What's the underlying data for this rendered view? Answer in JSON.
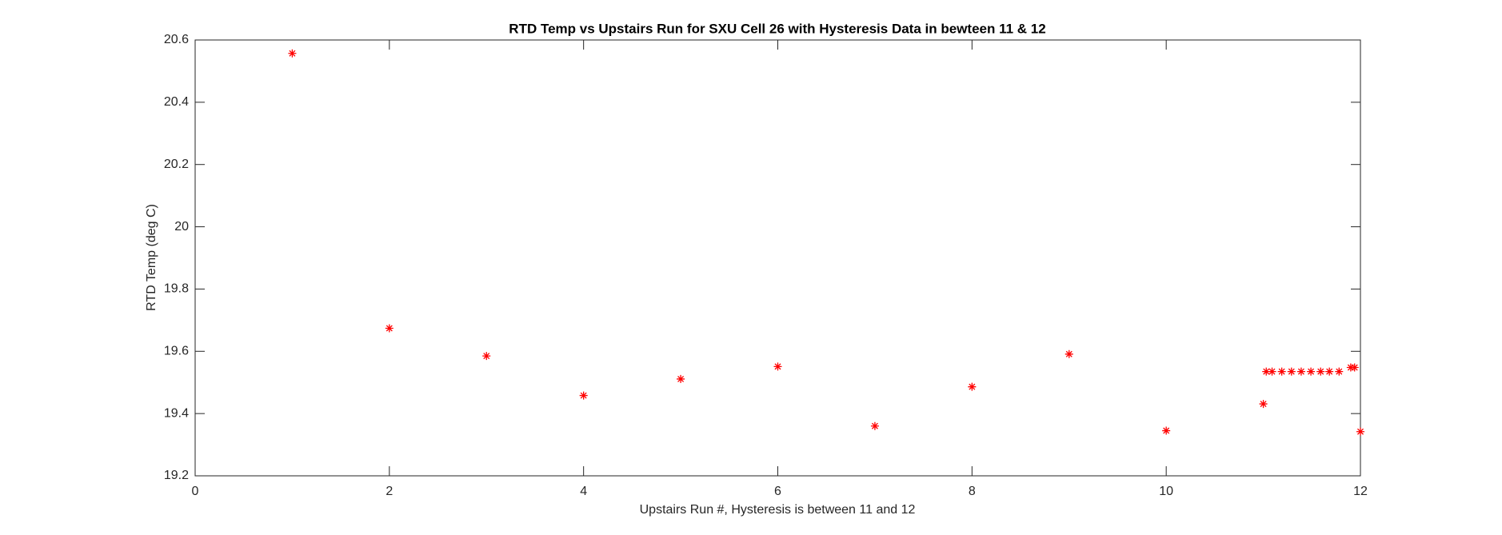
{
  "chart_data": {
    "type": "scatter",
    "title": "RTD Temp vs Upstairs Run for SXU Cell 26 with Hysteresis Data in bewteen 11 & 12",
    "x_label": "Upstairs Run #, Hysteresis is between 11 and 12",
    "y_label": "RTD Temp (deg C)",
    "series": [
      {
        "color": "#ff0000",
        "x": [
          1,
          2,
          3,
          4,
          5,
          6,
          7,
          8,
          9,
          10,
          11,
          11.03,
          11.09,
          11.19,
          11.29,
          11.39,
          11.49,
          11.59,
          11.68,
          11.78,
          11.9,
          11.94,
          12
        ],
        "values": [
          20.557,
          19.674,
          19.585,
          19.458,
          19.511,
          19.551,
          19.36,
          19.486,
          19.591,
          19.345,
          19.431,
          19.535,
          19.535,
          19.535,
          19.535,
          19.535,
          19.535,
          19.535,
          19.535,
          19.535,
          19.548,
          19.548,
          19.342
        ]
      }
    ],
    "xlim": [
      0,
      12
    ],
    "xticks": [
      0,
      2,
      4,
      6,
      8,
      10,
      12
    ],
    "ylim": [
      19.2,
      20.6
    ],
    "yticks": [
      19.2,
      19.4,
      19.6,
      19.8,
      20,
      20.2,
      20.4,
      20.6
    ]
  }
}
